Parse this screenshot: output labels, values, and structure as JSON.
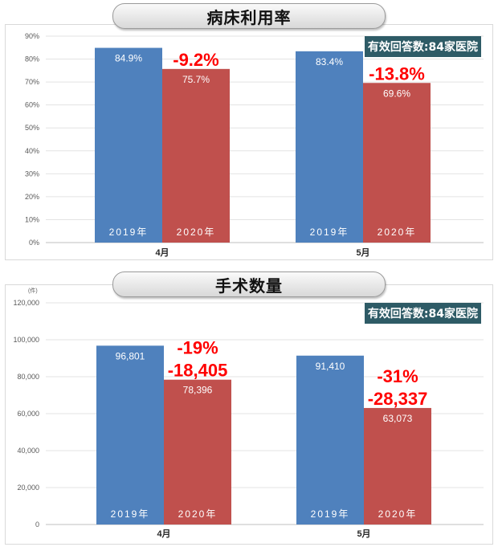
{
  "chart_data": [
    {
      "type": "bar",
      "title": "病床利用率",
      "note": "有效回答数:84家医院",
      "categories": [
        "4月",
        "5月"
      ],
      "series": [
        {
          "name": "2019年",
          "values": [
            84.9,
            83.4
          ],
          "color": "#4f81bd"
        },
        {
          "name": "2020年",
          "values": [
            75.7,
            69.6
          ],
          "color": "#c0504d"
        }
      ],
      "value_labels": [
        [
          "84.9%",
          "83.4%"
        ],
        [
          "75.7%",
          "69.6%"
        ]
      ],
      "change_labels": [
        [
          "-9.2%"
        ],
        [
          "-13.8%"
        ]
      ],
      "change_color": "#ff0000",
      "ylim": [
        0,
        90
      ],
      "yticks": [
        0,
        10,
        20,
        30,
        40,
        50,
        60,
        70,
        80,
        90
      ],
      "ytick_labels": [
        "0%",
        "10%",
        "20%",
        "30%",
        "40%",
        "50%",
        "60%",
        "70%",
        "80%",
        "90%"
      ],
      "unit": "",
      "grid": true
    },
    {
      "type": "bar",
      "title": "手术数量",
      "note": "有效回答数:84家医院",
      "categories": [
        "4月",
        "5月"
      ],
      "series": [
        {
          "name": "2019年",
          "values": [
            96801,
            91410
          ],
          "color": "#4f81bd"
        },
        {
          "name": "2020年",
          "values": [
            78396,
            63073
          ],
          "color": "#c0504d"
        }
      ],
      "value_labels": [
        [
          "96,801",
          "91,410"
        ],
        [
          "78,396",
          "63,073"
        ]
      ],
      "change_labels": [
        [
          "-19%",
          "-18,405"
        ],
        [
          "-31%",
          "-28,337"
        ]
      ],
      "change_color": "#ff0000",
      "ylim": [
        0,
        120000
      ],
      "yticks": [
        0,
        20000,
        40000,
        60000,
        80000,
        100000,
        120000
      ],
      "ytick_labels": [
        "0",
        "20,000",
        "40,000",
        "60,000",
        "80,000",
        "100,000",
        "120,000"
      ],
      "unit": "(件)",
      "grid": true
    }
  ]
}
